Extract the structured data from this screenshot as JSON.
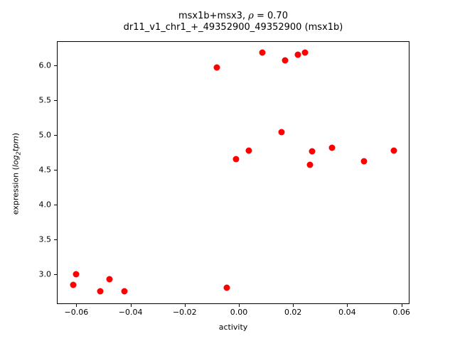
{
  "figure": {
    "title_line1": {
      "pre": "msx1b+msx3, ",
      "rho": "ρ",
      "post": " = 0.70"
    },
    "title_line2": "dr11_v1_chr1_+_49352900_49352900 (msx1b)",
    "xlabel": "activity",
    "ylabel": {
      "pre": "expression (",
      "func": "log",
      "sub": "2",
      "var": "tpm",
      "post": ")"
    }
  },
  "chart_data": {
    "type": "scatter",
    "title": "msx1b+msx3, ρ = 0.70",
    "subtitle": "dr11_v1_chr1_+_49352900_49352900 (msx1b)",
    "xlabel": "activity",
    "ylabel": "expression (log2tpm)",
    "marker_color": "#ff0000",
    "marker_diameter_px": 9,
    "grid": false,
    "legend": false,
    "xlim": [
      -0.0672,
      0.063
    ],
    "ylim": [
      2.566,
      6.348
    ],
    "x_ticks": [
      {
        "value": -0.06,
        "label": "−0.06"
      },
      {
        "value": -0.04,
        "label": "−0.04"
      },
      {
        "value": -0.02,
        "label": "−0.02"
      },
      {
        "value": 0.0,
        "label": "0.00"
      },
      {
        "value": 0.02,
        "label": "0.02"
      },
      {
        "value": 0.04,
        "label": "0.04"
      },
      {
        "value": 0.06,
        "label": "0.06"
      }
    ],
    "y_ticks": [
      {
        "value": 3.0,
        "label": "3.0"
      },
      {
        "value": 3.5,
        "label": "3.5"
      },
      {
        "value": 4.0,
        "label": "4.0"
      },
      {
        "value": 4.5,
        "label": "4.5"
      },
      {
        "value": 5.0,
        "label": "5.0"
      },
      {
        "value": 5.5,
        "label": "5.5"
      },
      {
        "value": 6.0,
        "label": "6.0"
      }
    ],
    "points": [
      {
        "x": -0.0602,
        "y": 3.0
      },
      {
        "x": -0.0611,
        "y": 2.84
      },
      {
        "x": -0.0513,
        "y": 2.75
      },
      {
        "x": -0.0477,
        "y": 2.92
      },
      {
        "x": -0.0423,
        "y": 2.75
      },
      {
        "x": -0.0046,
        "y": 2.8
      },
      {
        "x": -0.0082,
        "y": 5.97
      },
      {
        "x": 0.0087,
        "y": 6.18
      },
      {
        "x": 0.017,
        "y": 6.07
      },
      {
        "x": 0.0218,
        "y": 6.15
      },
      {
        "x": 0.0243,
        "y": 6.18
      },
      {
        "x": 0.0157,
        "y": 5.04
      },
      {
        "x": 0.0037,
        "y": 4.77
      },
      {
        "x": -0.001,
        "y": 4.65
      },
      {
        "x": 0.0269,
        "y": 4.76
      },
      {
        "x": 0.0263,
        "y": 4.57
      },
      {
        "x": 0.0344,
        "y": 4.82
      },
      {
        "x": 0.0461,
        "y": 4.62
      },
      {
        "x": 0.0571,
        "y": 4.77
      }
    ]
  }
}
